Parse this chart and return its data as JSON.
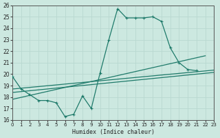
{
  "xlabel": "Humidex (Indice chaleur)",
  "xlim": [
    0,
    23
  ],
  "ylim": [
    16,
    26
  ],
  "xticks": [
    0,
    1,
    2,
    3,
    4,
    5,
    6,
    7,
    8,
    9,
    10,
    11,
    12,
    13,
    14,
    15,
    16,
    17,
    18,
    19,
    20,
    21,
    22,
    23
  ],
  "yticks": [
    16,
    17,
    18,
    19,
    20,
    21,
    22,
    23,
    24,
    25,
    26
  ],
  "bg_color": "#cce8e0",
  "grid_color": "#b8d8d0",
  "line_color": "#1e7a6a",
  "curve_x": [
    0,
    1,
    2,
    3,
    4,
    5,
    6,
    7,
    8,
    9,
    10,
    11,
    12,
    13,
    14,
    15,
    16,
    17,
    18,
    19,
    20,
    21
  ],
  "curve_y": [
    19.8,
    18.7,
    18.2,
    17.7,
    17.7,
    17.5,
    16.3,
    16.5,
    18.1,
    17.0,
    20.1,
    23.0,
    25.7,
    24.9,
    24.9,
    24.9,
    25.0,
    24.6,
    22.3,
    21.0,
    20.4,
    20.3
  ],
  "line1_x": [
    0,
    23
  ],
  "line1_y": [
    18.7,
    20.35
  ],
  "line2_x": [
    0,
    23
  ],
  "line2_y": [
    18.4,
    20.15
  ],
  "line3_x": [
    0,
    22
  ],
  "line3_y": [
    17.8,
    21.6
  ]
}
